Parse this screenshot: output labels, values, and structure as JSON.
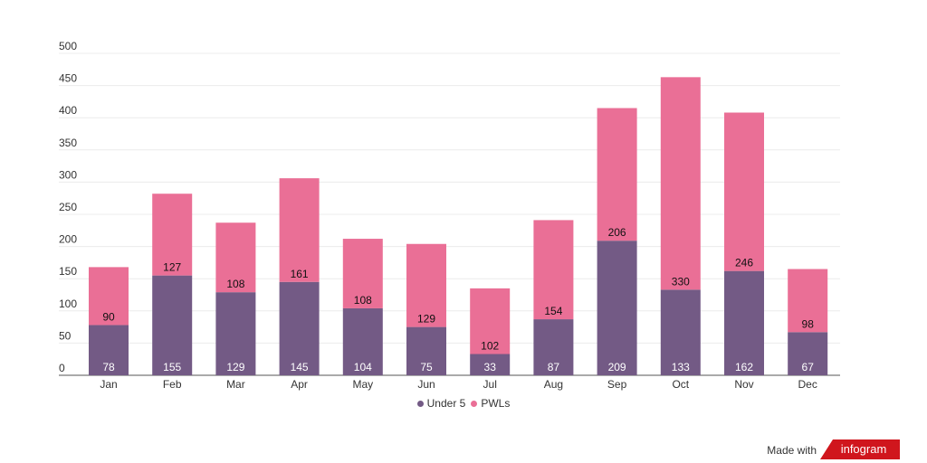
{
  "chart_data": {
    "type": "bar",
    "stacked": true,
    "categories": [
      "Jan",
      "Feb",
      "Mar",
      "Apr",
      "May",
      "Jun",
      "Jul",
      "Aug",
      "Sep",
      "Oct",
      "Nov",
      "Dec"
    ],
    "series": [
      {
        "name": "Under 5",
        "color": "#735a85",
        "values": [
          78,
          155,
          129,
          145,
          104,
          75,
          33,
          87,
          209,
          133,
          162,
          67
        ]
      },
      {
        "name": "PWLs",
        "color": "#ea6f96",
        "values": [
          90,
          127,
          108,
          161,
          108,
          129,
          102,
          154,
          206,
          330,
          246,
          98
        ]
      }
    ],
    "ylim": [
      0,
      500
    ],
    "yticks": [
      0,
      50,
      100,
      150,
      200,
      250,
      300,
      350,
      400,
      450,
      500
    ],
    "grid": true,
    "legend": "bottom"
  },
  "footer": {
    "made_with": "Made with",
    "brand": "infogram"
  }
}
